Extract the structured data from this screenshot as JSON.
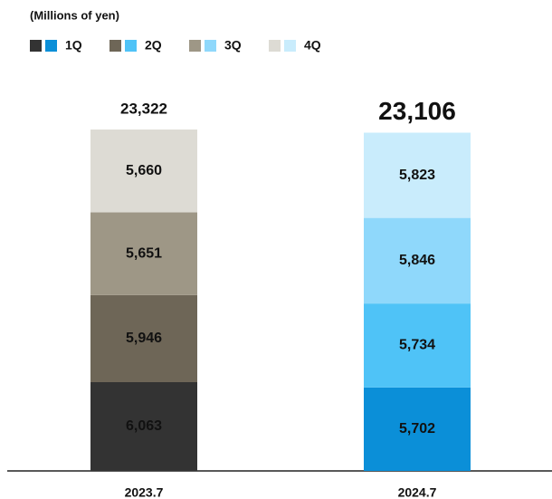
{
  "chart_data": {
    "type": "stacked_bar",
    "title": "(Millions of yen)",
    "categories": [
      "2023.7",
      "2024.7"
    ],
    "series": [
      {
        "name": "1Q",
        "color": [
          "#333333",
          "#0b8fd8"
        ],
        "values": [
          6063,
          5702
        ],
        "value_labels": [
          "6,063",
          "5,702"
        ]
      },
      {
        "name": "2Q",
        "color": [
          "#6e6657",
          "#4fc3f7"
        ],
        "values": [
          5946,
          5734
        ],
        "value_labels": [
          "5,946",
          "5,734"
        ]
      },
      {
        "name": "3Q",
        "color": [
          "#9e9786",
          "#8fd8fb"
        ],
        "values": [
          5651,
          5846
        ],
        "value_labels": [
          "5,651",
          "5,846"
        ]
      },
      {
        "name": "4Q",
        "color": [
          "#dddbd4",
          "#c9ecfc"
        ],
        "values": [
          5660,
          5823
        ],
        "value_labels": [
          "5,660",
          "5,823"
        ]
      }
    ],
    "totals": [
      23322,
      23106
    ],
    "total_labels": [
      "23,322",
      "23,106"
    ]
  }
}
